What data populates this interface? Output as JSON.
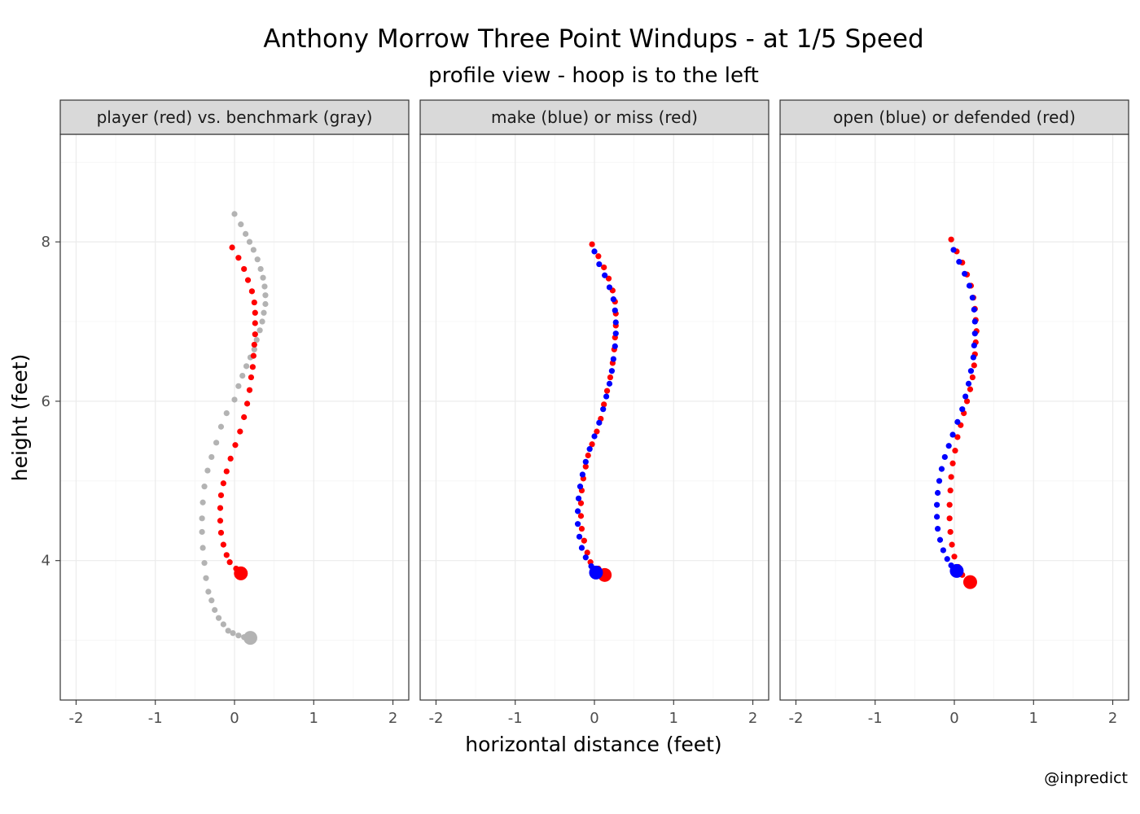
{
  "colors": {
    "red": "#ff0000",
    "blue": "#0000ff",
    "gray": "#b3b3b3"
  },
  "chart_data": {
    "type": "scatter",
    "title": "Anthony Morrow Three Point Windups - at 1/5 Speed",
    "subtitle": "profile view - hoop is to the left",
    "xlabel": "horizontal distance (feet)",
    "ylabel": "height (feet)",
    "caption": "@inpredict",
    "xlim": [
      -2.2,
      2.2
    ],
    "ylim": [
      2.25,
      9.35
    ],
    "x_ticks": [
      -2,
      -1,
      0,
      1,
      2
    ],
    "y_ticks": [
      4,
      6,
      8
    ],
    "grid": true,
    "legend": "none",
    "facets": [
      {
        "label": "player (red) vs. benchmark (gray)",
        "series": [
          {
            "color": "gray",
            "end": [
              0.2,
              3.03
            ],
            "points": [
              [
                0.0,
                8.35
              ],
              [
                0.08,
                8.22
              ],
              [
                0.14,
                8.1
              ],
              [
                0.19,
                8.0
              ],
              [
                0.24,
                7.9
              ],
              [
                0.29,
                7.78
              ],
              [
                0.33,
                7.66
              ],
              [
                0.36,
                7.55
              ],
              [
                0.38,
                7.44
              ],
              [
                0.39,
                7.33
              ],
              [
                0.39,
                7.22
              ],
              [
                0.37,
                7.11
              ],
              [
                0.35,
                7.0
              ],
              [
                0.32,
                6.89
              ],
              [
                0.28,
                6.77
              ],
              [
                0.25,
                6.65
              ],
              [
                0.2,
                6.55
              ],
              [
                0.15,
                6.44
              ],
              [
                0.1,
                6.32
              ],
              [
                0.05,
                6.19
              ],
              [
                0.0,
                6.02
              ],
              [
                -0.1,
                5.85
              ],
              [
                -0.17,
                5.68
              ],
              [
                -0.23,
                5.48
              ],
              [
                -0.29,
                5.3
              ],
              [
                -0.34,
                5.13
              ],
              [
                -0.38,
                4.93
              ],
              [
                -0.4,
                4.73
              ],
              [
                -0.41,
                4.53
              ],
              [
                -0.41,
                4.36
              ],
              [
                -0.4,
                4.16
              ],
              [
                -0.38,
                3.97
              ],
              [
                -0.36,
                3.78
              ],
              [
                -0.33,
                3.61
              ],
              [
                -0.29,
                3.5
              ],
              [
                -0.25,
                3.38
              ],
              [
                -0.2,
                3.28
              ],
              [
                -0.14,
                3.2
              ],
              [
                -0.08,
                3.12
              ],
              [
                -0.02,
                3.09
              ],
              [
                0.05,
                3.06
              ],
              [
                0.12,
                3.04
              ]
            ]
          },
          {
            "color": "red",
            "end": [
              0.08,
              3.84
            ],
            "points": [
              [
                -0.03,
                7.93
              ],
              [
                0.05,
                7.8
              ],
              [
                0.12,
                7.66
              ],
              [
                0.17,
                7.52
              ],
              [
                0.22,
                7.38
              ],
              [
                0.25,
                7.24
              ],
              [
                0.26,
                7.11
              ],
              [
                0.26,
                6.98
              ],
              [
                0.26,
                6.84
              ],
              [
                0.25,
                6.71
              ],
              [
                0.24,
                6.57
              ],
              [
                0.23,
                6.43
              ],
              [
                0.21,
                6.3
              ],
              [
                0.19,
                6.14
              ],
              [
                0.16,
                5.97
              ],
              [
                0.12,
                5.8
              ],
              [
                0.07,
                5.62
              ],
              [
                0.01,
                5.45
              ],
              [
                -0.05,
                5.28
              ],
              [
                -0.1,
                5.12
              ],
              [
                -0.14,
                4.97
              ],
              [
                -0.17,
                4.82
              ],
              [
                -0.18,
                4.66
              ],
              [
                -0.18,
                4.5
              ],
              [
                -0.17,
                4.35
              ],
              [
                -0.14,
                4.2
              ],
              [
                -0.1,
                4.07
              ],
              [
                -0.06,
                3.98
              ],
              [
                0.02,
                3.9
              ]
            ]
          }
        ]
      },
      {
        "label": "make (blue) or miss (red)",
        "series": [
          {
            "color": "red",
            "end": [
              0.13,
              3.82
            ],
            "points": [
              [
                -0.03,
                7.97
              ],
              [
                0.05,
                7.82
              ],
              [
                0.12,
                7.68
              ],
              [
                0.18,
                7.54
              ],
              [
                0.23,
                7.39
              ],
              [
                0.26,
                7.25
              ],
              [
                0.27,
                7.1
              ],
              [
                0.27,
                6.95
              ],
              [
                0.26,
                6.8
              ],
              [
                0.25,
                6.65
              ],
              [
                0.23,
                6.48
              ],
              [
                0.2,
                6.3
              ],
              [
                0.16,
                6.13
              ],
              [
                0.12,
                5.96
              ],
              [
                0.08,
                5.78
              ],
              [
                0.03,
                5.62
              ],
              [
                -0.03,
                5.46
              ],
              [
                -0.08,
                5.32
              ],
              [
                -0.11,
                5.18
              ],
              [
                -0.14,
                5.03
              ],
              [
                -0.16,
                4.88
              ],
              [
                -0.17,
                4.72
              ],
              [
                -0.17,
                4.56
              ],
              [
                -0.16,
                4.4
              ],
              [
                -0.13,
                4.25
              ],
              [
                -0.09,
                4.1
              ],
              [
                -0.05,
                3.98
              ],
              [
                0.05,
                3.9
              ]
            ]
          },
          {
            "color": "blue",
            "end": [
              0.02,
              3.85
            ],
            "points": [
              [
                0.0,
                7.88
              ],
              [
                0.06,
                7.72
              ],
              [
                0.13,
                7.58
              ],
              [
                0.19,
                7.43
              ],
              [
                0.24,
                7.28
              ],
              [
                0.26,
                7.14
              ],
              [
                0.27,
                6.99
              ],
              [
                0.27,
                6.85
              ],
              [
                0.26,
                6.69
              ],
              [
                0.24,
                6.53
              ],
              [
                0.22,
                6.38
              ],
              [
                0.19,
                6.22
              ],
              [
                0.15,
                6.06
              ],
              [
                0.11,
                5.9
              ],
              [
                0.06,
                5.73
              ],
              [
                0.0,
                5.56
              ],
              [
                -0.06,
                5.4
              ],
              [
                -0.11,
                5.24
              ],
              [
                -0.15,
                5.08
              ],
              [
                -0.18,
                4.93
              ],
              [
                -0.2,
                4.78
              ],
              [
                -0.21,
                4.62
              ],
              [
                -0.21,
                4.46
              ],
              [
                -0.19,
                4.3
              ],
              [
                -0.16,
                4.16
              ],
              [
                -0.11,
                4.04
              ],
              [
                -0.04,
                3.93
              ],
              [
                0.0,
                3.88
              ]
            ]
          }
        ]
      },
      {
        "label": "open (blue) or defended (red)",
        "series": [
          {
            "color": "red",
            "end": [
              0.2,
              3.73
            ],
            "points": [
              [
                -0.04,
                8.03
              ],
              [
                0.03,
                7.88
              ],
              [
                0.1,
                7.74
              ],
              [
                0.16,
                7.59
              ],
              [
                0.21,
                7.45
              ],
              [
                0.24,
                7.3
              ],
              [
                0.26,
                7.16
              ],
              [
                0.27,
                7.02
              ],
              [
                0.28,
                6.88
              ],
              [
                0.27,
                6.74
              ],
              [
                0.26,
                6.59
              ],
              [
                0.25,
                6.45
              ],
              [
                0.23,
                6.3
              ],
              [
                0.2,
                6.15
              ],
              [
                0.16,
                6.0
              ],
              [
                0.12,
                5.85
              ],
              [
                0.08,
                5.7
              ],
              [
                0.04,
                5.55
              ],
              [
                0.01,
                5.38
              ],
              [
                -0.02,
                5.22
              ],
              [
                -0.04,
                5.05
              ],
              [
                -0.05,
                4.88
              ],
              [
                -0.06,
                4.7
              ],
              [
                -0.06,
                4.53
              ],
              [
                -0.05,
                4.36
              ],
              [
                -0.03,
                4.2
              ],
              [
                0.0,
                4.05
              ],
              [
                0.05,
                3.92
              ],
              [
                0.1,
                3.82
              ]
            ]
          },
          {
            "color": "blue",
            "end": [
              0.03,
              3.87
            ],
            "points": [
              [
                -0.01,
                7.9
              ],
              [
                0.06,
                7.75
              ],
              [
                0.13,
                7.6
              ],
              [
                0.19,
                7.45
              ],
              [
                0.23,
                7.3
              ],
              [
                0.25,
                7.15
              ],
              [
                0.26,
                7.0
              ],
              [
                0.26,
                6.85
              ],
              [
                0.25,
                6.7
              ],
              [
                0.24,
                6.55
              ],
              [
                0.21,
                6.38
              ],
              [
                0.18,
                6.22
              ],
              [
                0.14,
                6.06
              ],
              [
                0.1,
                5.9
              ],
              [
                0.04,
                5.74
              ],
              [
                -0.02,
                5.58
              ],
              [
                -0.07,
                5.44
              ],
              [
                -0.12,
                5.3
              ],
              [
                -0.16,
                5.15
              ],
              [
                -0.19,
                5.0
              ],
              [
                -0.21,
                4.85
              ],
              [
                -0.22,
                4.7
              ],
              [
                -0.22,
                4.55
              ],
              [
                -0.21,
                4.4
              ],
              [
                -0.18,
                4.26
              ],
              [
                -0.14,
                4.13
              ],
              [
                -0.09,
                4.02
              ],
              [
                -0.04,
                3.94
              ],
              [
                0.01,
                3.9
              ]
            ]
          }
        ]
      }
    ]
  }
}
